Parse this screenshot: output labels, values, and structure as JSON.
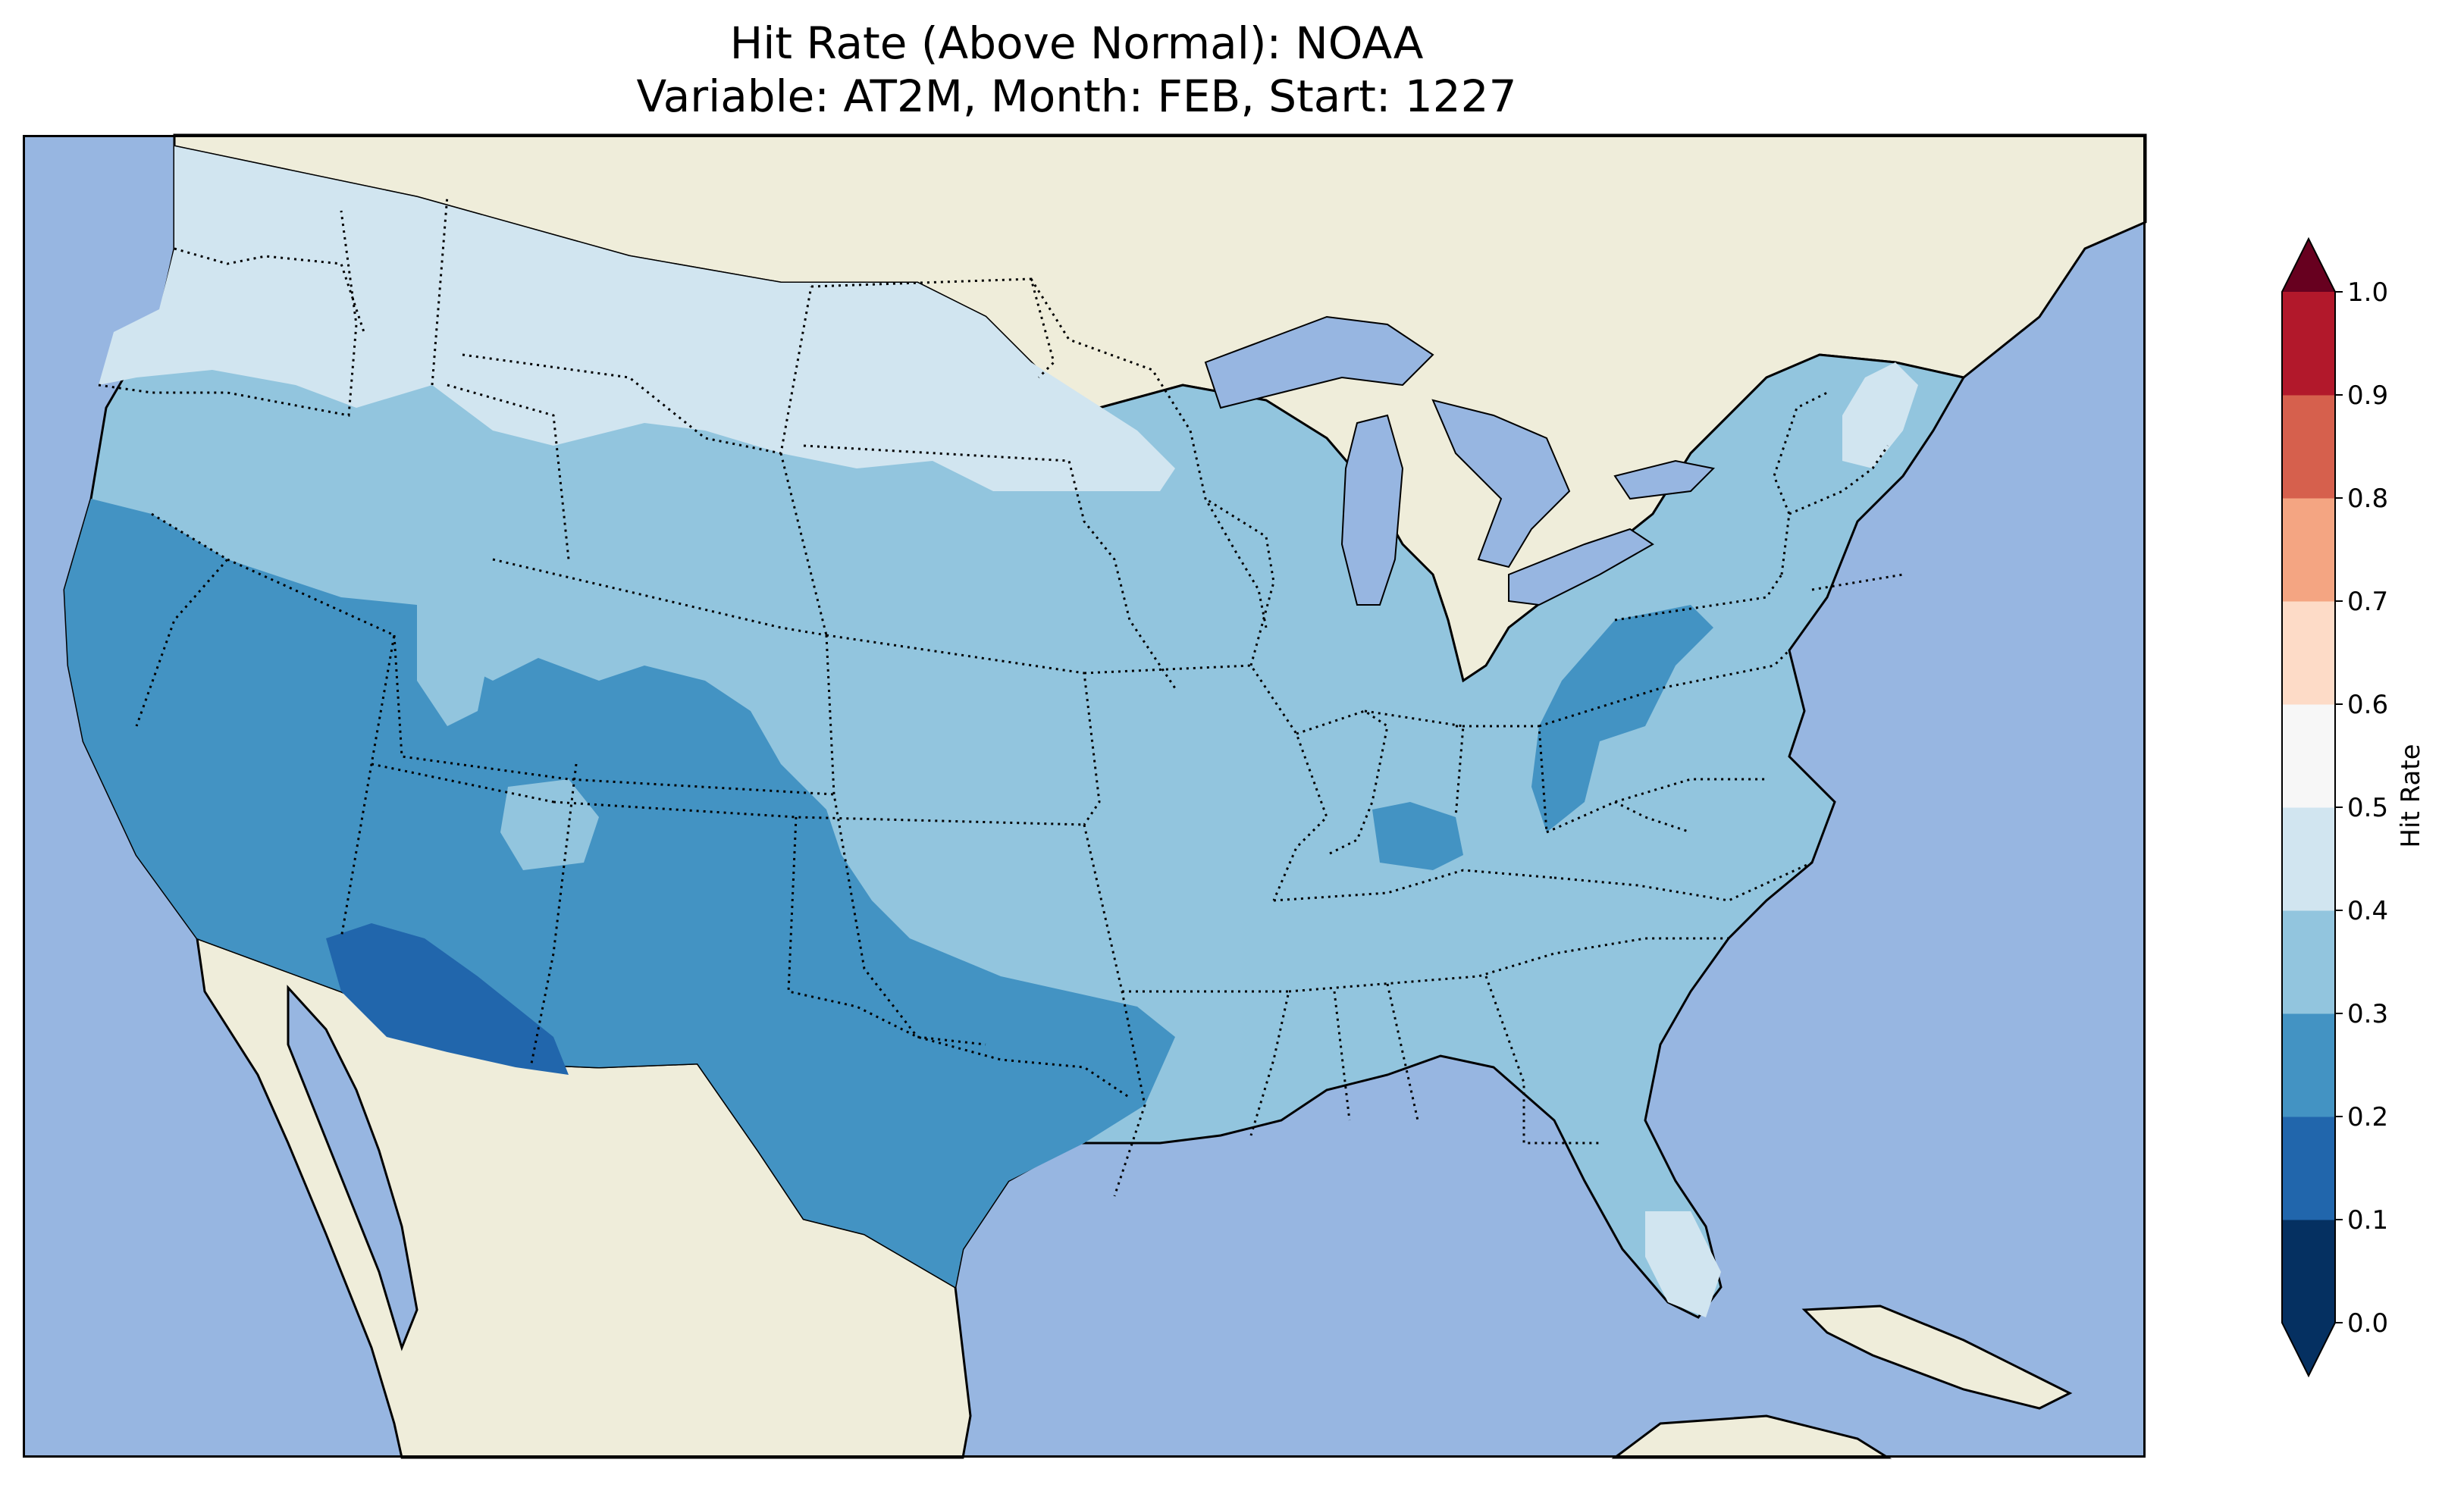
{
  "title": {
    "line1": "Hit Rate (Above Normal): NOAA",
    "line2": "Variable: AT2M, Month: FEB, Start: 1227"
  },
  "colors": {
    "ocean": "#97b6e1",
    "land": "#efedda",
    "lakes": "#97b6e1"
  },
  "colorbar": {
    "label": "Hit Rate",
    "ticks": [
      "0.0",
      "0.1",
      "0.2",
      "0.3",
      "0.4",
      "0.5",
      "0.6",
      "0.7",
      "0.8",
      "0.9",
      "1.0"
    ],
    "bins": [
      {
        "from": 0.0,
        "to": 0.1,
        "color": "#053061"
      },
      {
        "from": 0.1,
        "to": 0.2,
        "color": "#2166ac"
      },
      {
        "from": 0.2,
        "to": 0.3,
        "color": "#4393c3"
      },
      {
        "from": 0.3,
        "to": 0.4,
        "color": "#92c5de"
      },
      {
        "from": 0.4,
        "to": 0.5,
        "color": "#d1e5f0"
      },
      {
        "from": 0.5,
        "to": 0.6,
        "color": "#f7f7f7"
      },
      {
        "from": 0.6,
        "to": 0.7,
        "color": "#fddbc7"
      },
      {
        "from": 0.7,
        "to": 0.8,
        "color": "#f4a582"
      },
      {
        "from": 0.8,
        "to": 0.9,
        "color": "#d6604d"
      },
      {
        "from": 0.9,
        "to": 1.0,
        "color": "#b2182b"
      }
    ],
    "under_color": "#053061",
    "over_color": "#67001f",
    "extend": "both"
  }
}
